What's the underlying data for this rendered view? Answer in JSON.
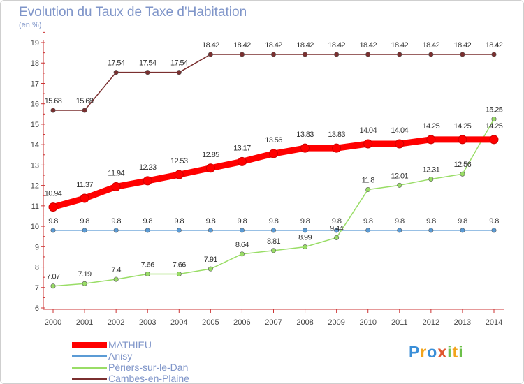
{
  "title": "Evolution du Taux de Taxe d'Habitation",
  "unit": "(en %)",
  "logo_text": "Proxiti",
  "chart_data": {
    "type": "line",
    "title": "Evolution du Taux de Taxe d'Habitation",
    "ylabel": "(en %)",
    "xlabel": "",
    "ylim": [
      6,
      19
    ],
    "yticks": [
      6,
      7,
      8,
      9,
      10,
      11,
      12,
      13,
      14,
      15,
      16,
      17,
      18,
      19
    ],
    "grid": false,
    "legend_position": "bottom-left",
    "categories": [
      "2000",
      "2001",
      "2002",
      "2003",
      "2004",
      "2005",
      "2006",
      "2007",
      "2008",
      "2009",
      "2010",
      "2011",
      "2012",
      "2013",
      "2014"
    ],
    "series": [
      {
        "name": "MATHIEU",
        "color": "#ff0000",
        "values": [
          10.94,
          11.37,
          11.94,
          12.23,
          12.53,
          12.85,
          13.17,
          13.56,
          13.83,
          13.83,
          14.04,
          14.04,
          14.25,
          14.25,
          14.25
        ],
        "labels": [
          "10.94",
          "11.37",
          "11.94",
          "12.23",
          "12.53",
          "12.85",
          "13.17",
          "13.56",
          "13.83",
          "13.83",
          "14.04",
          "14.04",
          "14.25",
          "14.25",
          "14.25"
        ]
      },
      {
        "name": "Anisy",
        "color": "#5b9bd5",
        "values": [
          9.8,
          9.8,
          9.8,
          9.8,
          9.8,
          9.8,
          9.8,
          9.8,
          9.8,
          9.8,
          9.8,
          9.8,
          9.8,
          9.8,
          9.8
        ],
        "labels": [
          "9.8",
          "9.8",
          "9.8",
          "9.8",
          "9.8",
          "9.8",
          "9.8",
          "9.8",
          "9.8",
          "9.8",
          "9.8",
          "9.8",
          "9.8",
          "9.8",
          "9.8"
        ]
      },
      {
        "name": "Périers-sur-le-Dan",
        "color": "#99dd66",
        "values": [
          7.07,
          7.19,
          7.4,
          7.66,
          7.66,
          7.91,
          8.64,
          8.81,
          8.99,
          9.44,
          11.8,
          12.01,
          12.31,
          12.56,
          15.25
        ],
        "labels": [
          "7.07",
          "7.19",
          "7.4",
          "7.66",
          "7.66",
          "7.91",
          "8.64",
          "8.81",
          "8.99",
          "9.44",
          "11.8",
          "12.01",
          "12.31",
          "12.56",
          "15.25"
        ]
      },
      {
        "name": "Cambes-en-Plaine",
        "color": "#7a2f2f",
        "values": [
          15.68,
          15.68,
          17.54,
          17.54,
          17.54,
          18.42,
          18.42,
          18.42,
          18.42,
          18.42,
          18.42,
          18.42,
          18.42,
          18.42,
          18.42
        ],
        "labels": [
          "15.68",
          "15.68",
          "17.54",
          "17.54",
          "17.54",
          "18.42",
          "18.42",
          "18.42",
          "18.42",
          "18.42",
          "18.42",
          "18.42",
          "18.42",
          "18.42",
          "18.42"
        ]
      }
    ]
  }
}
